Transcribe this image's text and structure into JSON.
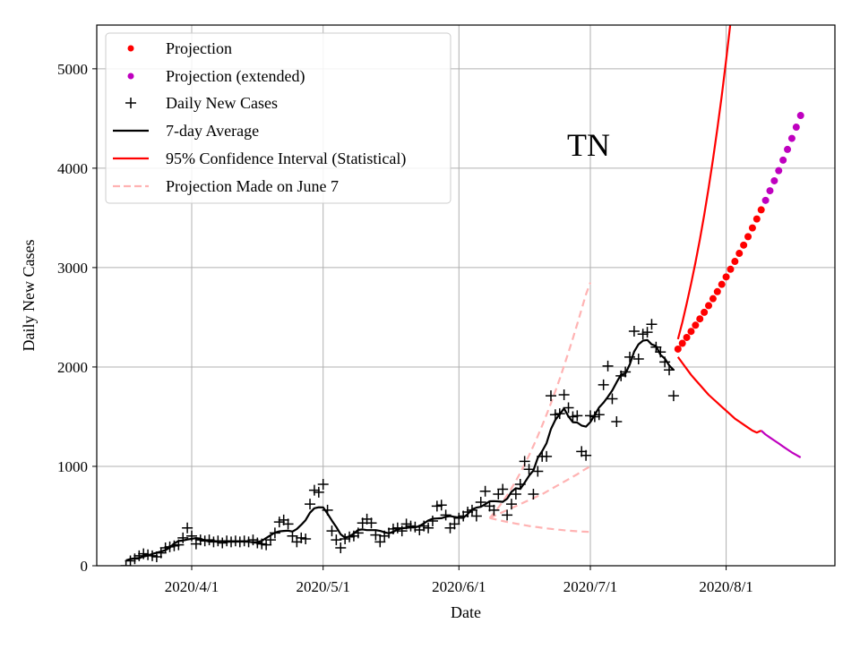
{
  "chart_data": {
    "type": "line",
    "annotation": "TN",
    "xlabel": "Date",
    "ylabel": "Daily New Cases",
    "ylim": [
      0,
      5440
    ],
    "yticks": [
      "0",
      "1000",
      "2000",
      "3000",
      "4000",
      "5000"
    ],
    "xticks": [
      {
        "label": "2020/4/1",
        "day": 15
      },
      {
        "label": "2020/5/1",
        "day": 45
      },
      {
        "label": "2020/6/1",
        "day": 76
      },
      {
        "label": "2020/7/1",
        "day": 106
      },
      {
        "label": "2020/8/1",
        "day": 137
      }
    ],
    "x_unit": "days since 2020/3/17",
    "grid": true,
    "legend_position": "top-left",
    "legend": [
      "Projection",
      "Projection (extended)",
      "Daily New Cases",
      "7-day Average",
      "95% Confidence Interval (Statistical)",
      "Projection Made on June 7"
    ],
    "colors": {
      "projection": "#ff0000",
      "projection_extended": "#bf00bf",
      "daily": "#000000",
      "average": "#000000",
      "ci": "#ff0000",
      "june7": "#ffb3b3",
      "grid": "#b0b0b0"
    },
    "daily_new_cases": {
      "start_day": 0,
      "values": [
        0,
        50,
        70,
        100,
        120,
        110,
        100,
        90,
        130,
        180,
        190,
        200,
        210,
        280,
        380,
        300,
        220,
        260,
        250,
        260,
        240,
        250,
        230,
        250,
        240,
        250,
        240,
        250,
        240,
        260,
        230,
        220,
        210,
        260,
        330,
        440,
        460,
        420,
        300,
        240,
        280,
        270,
        620,
        760,
        740,
        820,
        560,
        350,
        260,
        180,
        270,
        290,
        300,
        330,
        430,
        470,
        430,
        310,
        240,
        300,
        330,
        370,
        380,
        350,
        420,
        400,
        390,
        360,
        400,
        380,
        450,
        600,
        610,
        510,
        380,
        420,
        480,
        500,
        540,
        560,
        500,
        640,
        750,
        600,
        560,
        720,
        770,
        510,
        620,
        720,
        820,
        1050,
        970,
        720,
        950,
        1100,
        1100,
        1710,
        1520,
        1530,
        1720,
        1590,
        1500,
        1510,
        1150,
        1110,
        1510,
        1500,
        1520,
        1820,
        2010,
        1680,
        1450,
        1910,
        1950,
        2100,
        2360,
        2080,
        2330,
        2350,
        2430,
        2200,
        2150,
        2050,
        1970,
        1710
      ]
    },
    "projection": {
      "start_day": 126,
      "values": [
        2180,
        2238,
        2297,
        2358,
        2420,
        2484,
        2550,
        2617,
        2687,
        2758,
        2831,
        2906,
        2983,
        3062,
        3143,
        3226,
        3311,
        3399,
        3489,
        3581
      ]
    },
    "projection_extended": {
      "start_day": 146,
      "values": [
        3676,
        3773,
        3873,
        3975,
        4081,
        4189,
        4300,
        4413,
        4530
      ]
    },
    "ci_upper": {
      "start_day": 126,
      "values": [
        2280,
        2450,
        2640,
        2840,
        3050,
        3280,
        3530,
        3800,
        4090,
        4400,
        4730,
        5090,
        5470
      ]
    },
    "ci_lower": {
      "start_day": 126,
      "values": [
        2100,
        2040,
        1980,
        1920,
        1870,
        1820,
        1770,
        1720,
        1680,
        1640,
        1600,
        1560,
        1520,
        1480,
        1450,
        1420,
        1390,
        1360,
        1340,
        1360
      ]
    },
    "ci_lower_extended": {
      "start_day": 145,
      "values": [
        1360,
        1320,
        1290,
        1260,
        1230,
        1200,
        1170,
        1140,
        1115,
        1090
      ]
    },
    "june7_projection": {
      "start_day": 83,
      "upper": [
        480,
        530,
        585,
        645,
        710,
        780,
        855,
        935,
        1020,
        1110,
        1205,
        1305,
        1410,
        1520,
        1635,
        1755,
        1880,
        2010,
        2145,
        2285,
        2430,
        2580,
        2730,
        2850
      ],
      "middle": [
        480,
        500,
        520,
        540,
        560,
        580,
        600,
        620,
        640,
        660,
        680,
        700,
        720,
        745,
        770,
        795,
        820,
        845,
        870,
        895,
        920,
        950,
        975,
        1000
      ],
      "lower": [
        480,
        470,
        460,
        450,
        440,
        432,
        424,
        416,
        408,
        400,
        394,
        388,
        382,
        376,
        371,
        366,
        362,
        358,
        354,
        350,
        347,
        344,
        342,
        340
      ]
    }
  }
}
